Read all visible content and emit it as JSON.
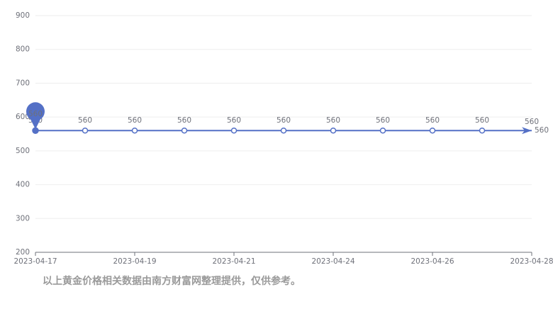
{
  "chart_data": {
    "type": "line",
    "categories": [
      "2023-04-17",
      null,
      "2023-04-19",
      null,
      "2023-04-21",
      null,
      "2023-04-24",
      null,
      "2023-04-26",
      null,
      "2023-04-28"
    ],
    "series": [
      {
        "name": null,
        "color": "#5470c6",
        "values": [
          560,
          560,
          560,
          560,
          560,
          560,
          560,
          560,
          560,
          560,
          560
        ]
      }
    ],
    "ylim": [
      200,
      900
    ],
    "yticks": [
      200,
      300,
      400,
      500,
      600,
      700,
      800,
      900
    ],
    "grid": true,
    "footnote": "以上黄金价格相关数据由南方财富网整理提供，仅供参考。"
  }
}
